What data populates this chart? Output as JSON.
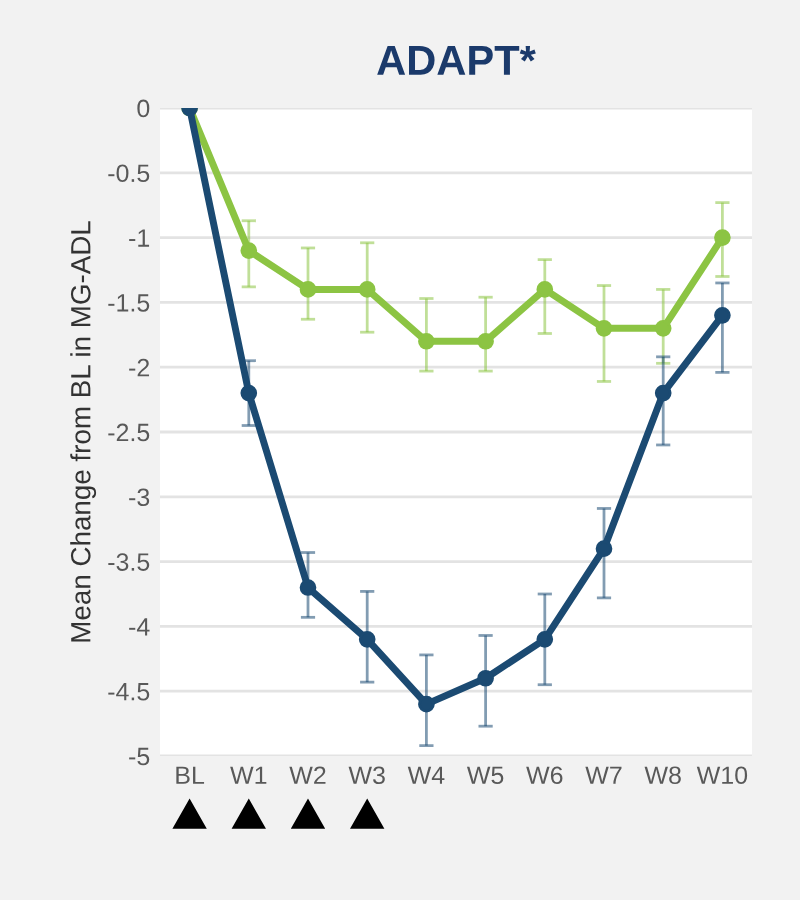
{
  "chart_data": {
    "type": "line",
    "title": "ADAPT*",
    "ylabel": "Mean Change from BL in MG-ADL",
    "categories": [
      "BL",
      "W1",
      "W2",
      "W3",
      "W4",
      "W5",
      "W6",
      "W7",
      "W8",
      "W10"
    ],
    "series": [
      {
        "color": "#8cc443",
        "values": [
          0,
          -1.1,
          -1.4,
          -1.4,
          -1.8,
          -1.8,
          -1.4,
          -1.7,
          -1.7,
          -1.0
        ],
        "errors": [
          null,
          [
            -1.38,
            -0.87
          ],
          [
            -1.63,
            -1.08
          ],
          [
            -1.73,
            -1.04
          ],
          [
            -2.03,
            -1.47
          ],
          [
            -2.03,
            -1.46
          ],
          [
            -1.74,
            -1.17
          ],
          [
            -2.11,
            -1.37
          ],
          [
            -1.97,
            -1.4
          ],
          [
            -1.3,
            -0.73
          ]
        ]
      },
      {
        "color": "#1b4a72",
        "values": [
          0,
          -2.2,
          -3.7,
          -4.1,
          -4.6,
          -4.4,
          -4.1,
          -3.4,
          -2.2,
          -1.6
        ],
        "errors": [
          null,
          [
            -2.45,
            -1.95
          ],
          [
            -3.93,
            -3.43
          ],
          [
            -4.43,
            -3.73
          ],
          [
            -4.92,
            -4.22
          ],
          [
            -4.77,
            -4.07
          ],
          [
            -4.45,
            -3.75
          ],
          [
            -3.78,
            -3.09
          ],
          [
            -2.6,
            -1.92
          ],
          [
            -2.04,
            -1.35
          ]
        ]
      }
    ],
    "ylim": [
      -5,
      0
    ],
    "yticks": [
      0,
      -0.5,
      -1,
      -1.5,
      -2,
      -2.5,
      -3,
      -3.5,
      -4,
      -4.5,
      -5
    ],
    "grid": "y",
    "marker": "circle",
    "line_style": "solid"
  }
}
